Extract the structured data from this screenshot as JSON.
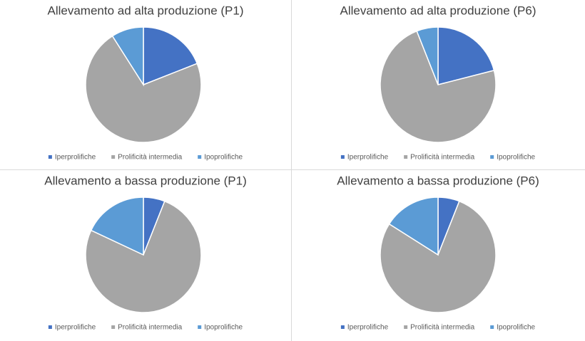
{
  "chart_data": [
    {
      "type": "pie",
      "title": "Allevamento ad alta produzione (P1)",
      "categories": [
        "Iperprolifiche",
        "Prolificità intermedia",
        "Ipoprolifiche"
      ],
      "values": [
        19,
        72,
        9
      ],
      "colors": [
        "#4472c4",
        "#a5a5a5",
        "#5b9bd5"
      ],
      "legend": "bottom"
    },
    {
      "type": "pie",
      "title": "Allevamento ad alta produzione (P6)",
      "categories": [
        "Iperprolifiche",
        "Prolificità intermedia",
        "Ipoprolifiche"
      ],
      "values": [
        21,
        73,
        6
      ],
      "colors": [
        "#4472c4",
        "#a5a5a5",
        "#5b9bd5"
      ],
      "legend": "bottom"
    },
    {
      "type": "pie",
      "title": "Allevamento a bassa produzione (P1)",
      "categories": [
        "Iperprolifiche",
        "Prolificità intermedia",
        "Ipoprolifiche"
      ],
      "values": [
        6,
        76,
        18
      ],
      "colors": [
        "#4472c4",
        "#a5a5a5",
        "#5b9bd5"
      ],
      "legend": "bottom"
    },
    {
      "type": "pie",
      "title": "Allevamento a bassa produzione (P6)",
      "categories": [
        "Iperprolifiche",
        "Prolificità intermedia",
        "Ipoprolifiche"
      ],
      "values": [
        6,
        78,
        16
      ],
      "colors": [
        "#4472c4",
        "#a5a5a5",
        "#5b9bd5"
      ],
      "legend": "bottom"
    }
  ]
}
